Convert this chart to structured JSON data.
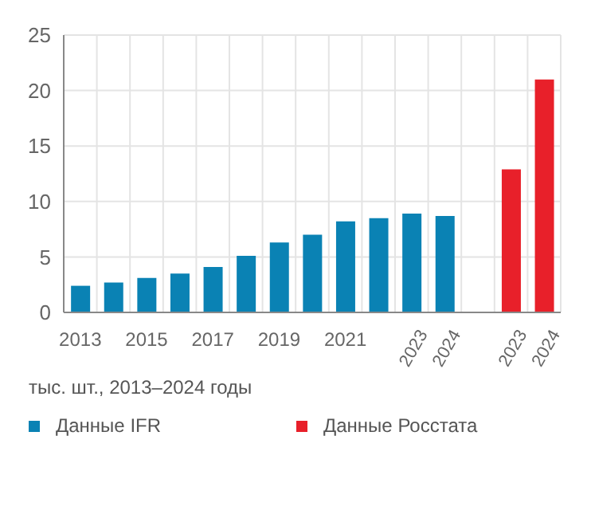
{
  "chart_data": {
    "type": "bar",
    "categories": [
      "2013",
      null,
      "2015",
      null,
      "2017",
      null,
      "2019",
      null,
      "2021",
      null,
      "2023",
      "2024",
      null,
      "2023",
      "2024"
    ],
    "series": [
      {
        "name": "Данные IFR",
        "color": "#0a82b4",
        "values": [
          2.4,
          2.7,
          3.1,
          3.5,
          4.1,
          5.1,
          6.3,
          7.0,
          8.2,
          8.5,
          8.9,
          8.7,
          null,
          null,
          null
        ]
      },
      {
        "name": "Данные Росстата",
        "color": "#e8202a",
        "values": [
          null,
          null,
          null,
          null,
          null,
          null,
          null,
          null,
          null,
          null,
          null,
          null,
          null,
          12.9,
          21.0
        ]
      }
    ],
    "ylim": [
      0,
      25
    ],
    "yticks": [
      0,
      5,
      10,
      15,
      20,
      25
    ],
    "grid": true,
    "legend": "bottom",
    "annotations": [
      "тыс. шт., 2013–2024 годы"
    ]
  }
}
